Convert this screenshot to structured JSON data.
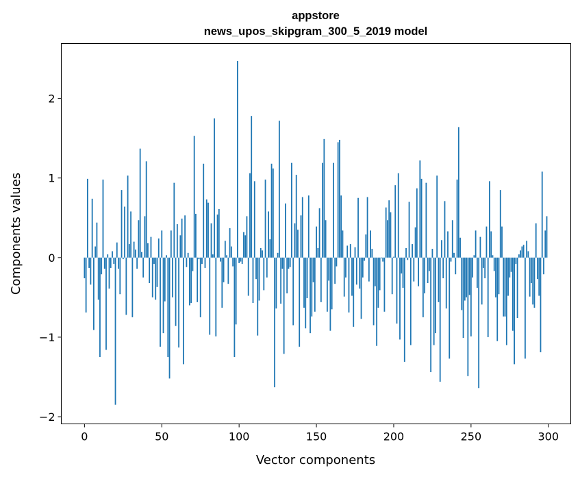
{
  "chart_data": {
    "type": "bar",
    "title_lines": [
      "appstore",
      "news_upos_skipgram_300_5_2019 model"
    ],
    "xlabel": "Vector components",
    "ylabel": "Components values",
    "xlim": [
      -15,
      314.5
    ],
    "ylim": [
      -2.09,
      2.69
    ],
    "xticks": [
      0,
      50,
      100,
      150,
      200,
      250,
      300
    ],
    "xtick_labels": [
      "0",
      "50",
      "100",
      "150",
      "200",
      "250",
      "300"
    ],
    "yticks": [
      -2,
      -1,
      0,
      1,
      2
    ],
    "ytick_labels": [
      "−2",
      "−1",
      "0",
      "1",
      "2"
    ],
    "grid": false,
    "bar_color": "#1f77b4",
    "values": [
      -0.26,
      -0.69,
      0.99,
      -0.13,
      -0.34,
      0.74,
      -0.91,
      0.14,
      0.44,
      -0.53,
      -1.25,
      -0.21,
      0.98,
      -0.14,
      -1.16,
      0.04,
      -0.39,
      -0.13,
      0.08,
      -0.08,
      -1.85,
      0.19,
      -0.14,
      -0.46,
      0.85,
      -0.02,
      0.64,
      -0.72,
      1.03,
      0.17,
      0.58,
      -0.75,
      0.2,
      0.1,
      -0.14,
      0.47,
      1.37,
      0.07,
      -0.25,
      0.52,
      1.21,
      0.18,
      -0.32,
      0.26,
      -0.5,
      -0.08,
      -0.53,
      -0.37,
      0.24,
      -1.12,
      0.34,
      -0.95,
      -0.55,
      0.03,
      -1.25,
      -1.52,
      0.34,
      -0.5,
      0.94,
      -0.86,
      0.42,
      -1.13,
      0.28,
      0.49,
      -1.34,
      0.53,
      -0.12,
      0.06,
      -0.6,
      -0.57,
      -0.17,
      1.53,
      0.55,
      -0.56,
      -0.02,
      -0.75,
      -0.08,
      1.18,
      -0.13,
      0.73,
      0.69,
      -0.97,
      0.43,
      0.04,
      1.75,
      -0.99,
      0.54,
      0.61,
      -0.05,
      -0.63,
      -0.31,
      0.21,
      0.03,
      -0.33,
      0.37,
      0.14,
      -0.11,
      -1.25,
      -0.84,
      2.47,
      -0.07,
      -0.05,
      -0.08,
      0.32,
      0.28,
      0.52,
      -0.48,
      1.06,
      1.78,
      -0.57,
      0.96,
      -0.27,
      -0.98,
      -0.54,
      0.12,
      0.09,
      -0.41,
      0.98,
      -0.25,
      0.58,
      0.23,
      1.18,
      1.12,
      -1.63,
      -0.64,
      0.06,
      1.72,
      -0.58,
      -0.14,
      -1.21,
      0.68,
      -0.45,
      -0.14,
      -0.12,
      1.19,
      -0.85,
      0.43,
      1.04,
      0.35,
      -1.12,
      0.53,
      0.76,
      -0.63,
      -0.89,
      -0.51,
      0.78,
      -0.95,
      -0.74,
      -0.31,
      -0.68,
      0.39,
      0.12,
      0.62,
      -0.56,
      1.19,
      1.49,
      0.47,
      -0.68,
      -0.29,
      -0.92,
      -0.65,
      1.19,
      -0.33,
      -0.11,
      1.45,
      1.48,
      0.78,
      0.34,
      -0.49,
      -0.25,
      0.15,
      -0.69,
      0.17,
      -0.48,
      -0.87,
      0.13,
      -0.34,
      0.75,
      -0.39,
      -0.77,
      -0.25,
      -0.04,
      0.29,
      0.76,
      -0.3,
      0.34,
      0.11,
      -0.85,
      -0.36,
      -1.11,
      -0.63,
      -0.41,
      -0.01,
      -0.05,
      -0.68,
      0.63,
      0.47,
      0.72,
      0.57,
      -0.46,
      0.01,
      0.91,
      -0.83,
      1.06,
      -1.03,
      -0.2,
      -0.38,
      -1.31,
      0.12,
      -0.03,
      0.7,
      -1.1,
      0.17,
      -0.3,
      0.38,
      0.87,
      -0.36,
      1.22,
      0.99,
      -0.75,
      -0.45,
      0.94,
      -0.32,
      -0.17,
      -1.44,
      0.11,
      -1.1,
      -0.95,
      1.03,
      -0.56,
      -1.56,
      0.22,
      -0.26,
      0.71,
      -0.64,
      0.33,
      -1.27,
      -0.05,
      0.47,
      0.06,
      -0.21,
      0.98,
      1.64,
      0.25,
      -0.66,
      -1.01,
      -0.54,
      -0.5,
      -1.49,
      -0.47,
      -0.99,
      -0.25,
      0.03,
      0.34,
      -0.38,
      -1.64,
      0.26,
      -0.59,
      -0.13,
      -0.26,
      0.39,
      -1.0,
      0.96,
      0.33,
      0.03,
      -0.17,
      -0.5,
      -1.05,
      -0.46,
      0.85,
      0.39,
      -0.74,
      -0.74,
      -1.1,
      -0.48,
      -0.25,
      -0.18,
      -0.92,
      -1.34,
      -0.08,
      -0.76,
      0.04,
      0.09,
      0.14,
      0.16,
      -1.27,
      0.21,
      0.08,
      -0.49,
      -0.32,
      -0.59,
      -0.63,
      0.43,
      -0.27,
      -0.48,
      -1.19,
      1.08,
      -0.21,
      0.34,
      0.52
    ]
  }
}
